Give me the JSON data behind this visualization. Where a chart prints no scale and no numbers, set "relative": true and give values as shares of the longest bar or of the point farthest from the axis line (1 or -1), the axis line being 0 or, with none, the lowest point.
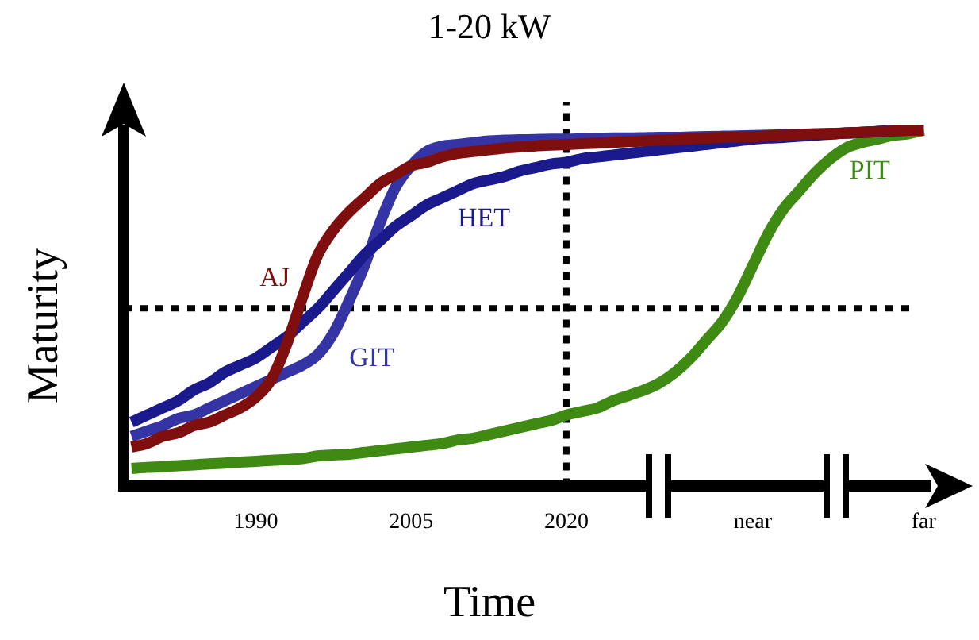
{
  "chart_data": {
    "type": "line",
    "title": "1-20 kW",
    "xlabel": "Time",
    "ylabel": "Maturity",
    "relative": true,
    "tick_labels": "x",
    "grid": false,
    "legend": false,
    "marker": "none",
    "line_style": "solid",
    "categories": [
      null,
      null,
      null,
      null,
      null,
      null,
      null,
      null,
      "1990",
      null,
      null,
      null,
      null,
      null,
      null,
      null,
      null,
      null,
      "2005",
      null,
      null,
      null,
      null,
      null,
      null,
      null,
      null,
      null,
      "2020",
      null,
      null,
      null,
      null,
      null,
      null,
      null,
      null,
      null,
      null,
      null,
      "near",
      null,
      null,
      null,
      null,
      null,
      null,
      null,
      null,
      null,
      null,
      "far"
    ],
    "series": [
      {
        "name": "AJ",
        "color": "#7f0f0f",
        "values": [
          0.11,
          0.12,
          0.14,
          0.15,
          0.17,
          0.18,
          0.2,
          0.22,
          0.25,
          0.3,
          0.4,
          0.53,
          0.65,
          0.72,
          0.77,
          0.81,
          0.85,
          0.875,
          0.9,
          0.91,
          0.925,
          0.935,
          0.94,
          0.945,
          0.95,
          0.953,
          0.956,
          0.958,
          0.96,
          0.962,
          0.964,
          0.966,
          0.968,
          0.97,
          0.972,
          0.974,
          0.976,
          0.978,
          0.98,
          0.981,
          0.982,
          0.984,
          0.986,
          0.988,
          0.99,
          0.991,
          0.992,
          0.994,
          0.996,
          0.998,
          1.0,
          1.0
        ]
      },
      {
        "name": "HET",
        "color": "#1a1a8c",
        "values": [
          0.18,
          0.2,
          0.22,
          0.24,
          0.27,
          0.29,
          0.32,
          0.34,
          0.36,
          0.39,
          0.42,
          0.46,
          0.5,
          0.55,
          0.6,
          0.65,
          0.69,
          0.73,
          0.76,
          0.79,
          0.81,
          0.83,
          0.85,
          0.86,
          0.87,
          0.885,
          0.895,
          0.905,
          0.91,
          0.92,
          0.925,
          0.93,
          0.935,
          0.94,
          0.945,
          0.95,
          0.955,
          0.96,
          0.965,
          0.97,
          0.975,
          0.978,
          0.98,
          0.983,
          0.986,
          0.989,
          0.992,
          0.994,
          0.996,
          0.998,
          1.0,
          1.0
        ]
      },
      {
        "name": "GIT",
        "color": "#3434a4",
        "values": [
          0.14,
          0.155,
          0.17,
          0.19,
          0.2,
          0.22,
          0.24,
          0.26,
          0.28,
          0.3,
          0.32,
          0.34,
          0.37,
          0.43,
          0.52,
          0.62,
          0.74,
          0.84,
          0.9,
          0.94,
          0.955,
          0.96,
          0.965,
          0.97,
          0.972,
          0.973,
          0.974,
          0.975,
          0.975,
          0.976,
          0.977,
          0.978,
          0.978,
          0.979,
          0.98,
          0.98,
          0.981,
          0.982,
          0.983,
          0.984,
          0.985,
          0.986,
          0.987,
          0.988,
          0.989,
          0.99,
          0.992,
          0.994,
          0.996,
          1.0,
          1.0,
          1.0
        ]
      },
      {
        "name": "PIT",
        "color": "#3f8a12",
        "values": [
          0.05,
          0.053,
          0.055,
          0.058,
          0.06,
          0.063,
          0.065,
          0.068,
          0.07,
          0.073,
          0.075,
          0.078,
          0.085,
          0.088,
          0.09,
          0.095,
          0.1,
          0.105,
          0.11,
          0.115,
          0.12,
          0.13,
          0.135,
          0.145,
          0.155,
          0.165,
          0.175,
          0.185,
          0.2,
          0.21,
          0.22,
          0.24,
          0.255,
          0.27,
          0.29,
          0.32,
          0.36,
          0.41,
          0.46,
          0.53,
          0.62,
          0.71,
          0.78,
          0.83,
          0.88,
          0.92,
          0.95,
          0.965,
          0.975,
          0.985,
          0.99,
          1.0
        ]
      }
    ],
    "ref_lines": [
      {
        "axis": "x",
        "value": "2020",
        "color": "#000000",
        "line_style": "dotted"
      },
      {
        "axis": "y",
        "value": 0.5,
        "color": "#000000",
        "line_style": "dotted"
      }
    ]
  }
}
